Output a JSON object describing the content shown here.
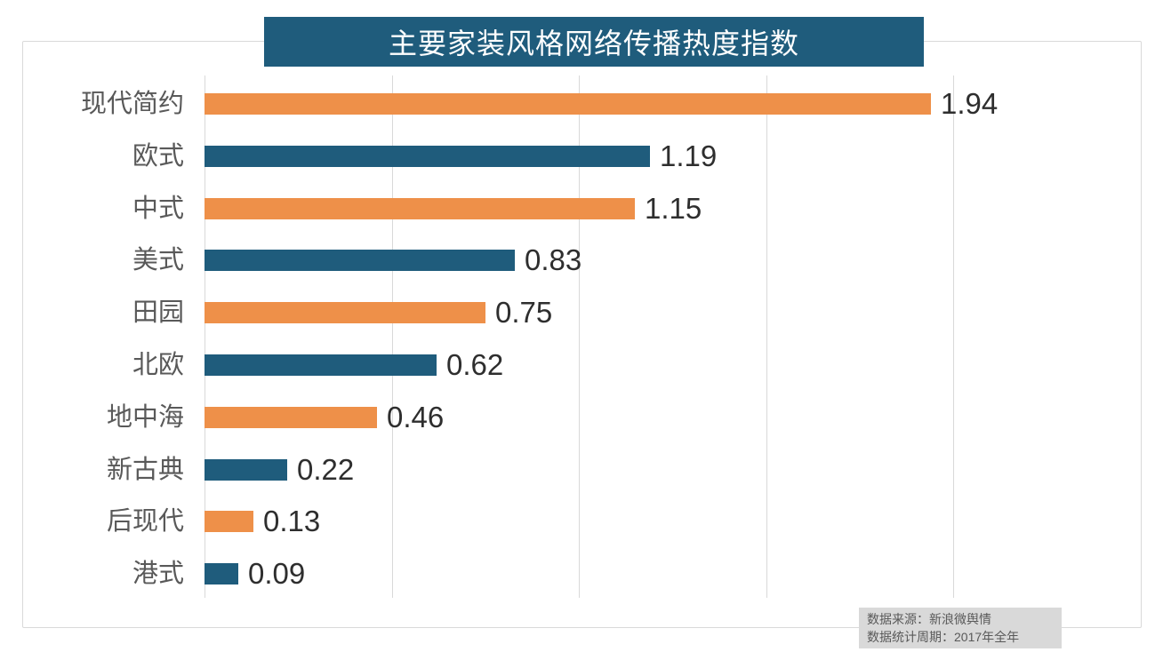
{
  "title": "主要家装风格网络传播热度指数",
  "chart_data": {
    "type": "bar",
    "orientation": "horizontal",
    "title": "主要家装风格网络传播热度指数",
    "categories": [
      "现代简约",
      "欧式",
      "中式",
      "美式",
      "田园",
      "北欧",
      "地中海",
      "新古典",
      "后现代",
      "港式"
    ],
    "values": [
      1.94,
      1.19,
      1.15,
      0.83,
      0.75,
      0.62,
      0.46,
      0.22,
      0.13,
      0.09
    ],
    "value_labels": [
      "1.94",
      "1.19",
      "1.15",
      "0.83",
      "0.75",
      "0.62",
      "0.46",
      "0.22",
      "0.13",
      "0.09"
    ],
    "xlim": [
      0,
      2.0
    ],
    "gridline_interval": 0.5,
    "grid": true,
    "legend": "none",
    "bar_color_pattern": [
      "#EE9049",
      "#1F5C7C"
    ]
  },
  "footer": {
    "source_line": "数据来源：新浪微舆情",
    "period_line": "数据统计周期：2017年全年"
  },
  "colors": {
    "banner_bg": "#1F5C7C",
    "banner_text": "#FFFFFF",
    "bar_orange": "#EE9049",
    "bar_blue": "#1F5C7C",
    "gridline": "#D9D9D9",
    "frame_border": "#D9D9D9",
    "category_label": "#595959",
    "value_label": "#2E2E2E",
    "footer_bg": "#D9D9D9",
    "footer_text": "#595959"
  }
}
